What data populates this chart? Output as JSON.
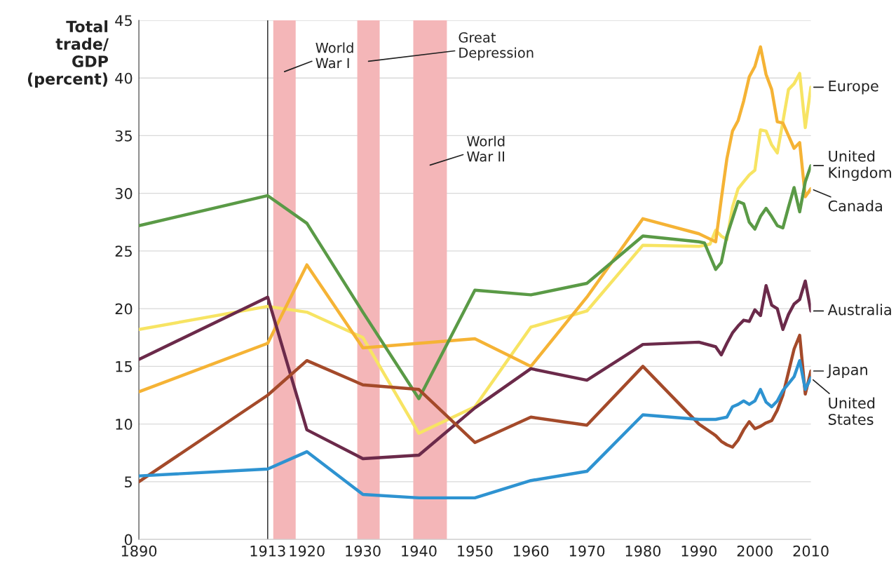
{
  "chart_data": {
    "type": "line",
    "ylabel": "Total\ntrade/\nGDP\n(percent)",
    "xlim": [
      1890,
      2010
    ],
    "xticks": [
      1890,
      1913,
      1920,
      1930,
      1940,
      1950,
      1960,
      1970,
      1980,
      1990,
      2000,
      2010
    ],
    "ylim": [
      0,
      45
    ],
    "yticks": [
      0,
      5,
      10,
      15,
      20,
      25,
      30,
      35,
      40,
      45
    ],
    "grid": "y",
    "series": [
      {
        "name": "Europe",
        "color": "#f7e463",
        "x": [
          1890,
          1913,
          1920,
          1930,
          1940,
          1950,
          1960,
          1970,
          1980,
          1990,
          1992,
          1993,
          1994,
          1995,
          1996,
          1997,
          1998,
          1999,
          2000,
          2001,
          2002,
          2003,
          2004,
          2005,
          2006,
          2007,
          2008,
          2009,
          2010
        ],
        "values": [
          18.2,
          20.2,
          19.7,
          17.5,
          9.2,
          11.5,
          18.4,
          19.8,
          25.5,
          25.4,
          25.6,
          26.8,
          26.3,
          26.0,
          28.8,
          30.4,
          31.0,
          31.6,
          32.0,
          35.5,
          35.4,
          34.2,
          33.5,
          36.2,
          39.0,
          39.5,
          40.4,
          35.7,
          39.2
        ]
      },
      {
        "name": "Canada",
        "color": "#f5b335",
        "x": [
          1890,
          1913,
          1920,
          1930,
          1940,
          1950,
          1960,
          1970,
          1980,
          1990,
          1993,
          1994,
          1995,
          1996,
          1997,
          1998,
          1999,
          2000,
          2001,
          2002,
          2003,
          2004,
          2005,
          2006,
          2007,
          2008,
          2009,
          2010
        ],
        "values": [
          12.8,
          17.0,
          23.8,
          16.6,
          17.0,
          17.4,
          15.0,
          21.0,
          27.8,
          26.5,
          25.8,
          29.5,
          33.0,
          35.4,
          36.3,
          38.0,
          40.1,
          41.0,
          42.7,
          40.3,
          39.0,
          36.2,
          36.1,
          35.0,
          33.9,
          34.4,
          29.7,
          30.4
        ]
      },
      {
        "name": "United\nKingdom",
        "color": "#5a9a46",
        "x": [
          1890,
          1913,
          1920,
          1930,
          1940,
          1950,
          1960,
          1970,
          1980,
          1990,
          1991,
          1993,
          1994,
          1995,
          1996,
          1997,
          1998,
          1999,
          2000,
          2001,
          2002,
          2003,
          2004,
          2005,
          2006,
          2007,
          2008,
          2009,
          2010
        ],
        "values": [
          27.2,
          29.8,
          27.4,
          19.7,
          12.2,
          21.6,
          21.2,
          22.2,
          26.3,
          25.8,
          25.7,
          23.4,
          24.0,
          26.3,
          27.8,
          29.3,
          29.1,
          27.5,
          26.9,
          28.0,
          28.7,
          28.0,
          27.2,
          27.0,
          28.8,
          30.5,
          28.4,
          31.0,
          32.4
        ]
      },
      {
        "name": "Australia",
        "color": "#6b2a4a",
        "x": [
          1890,
          1913,
          1920,
          1930,
          1940,
          1950,
          1960,
          1970,
          1980,
          1990,
          1993,
          1994,
          1995,
          1996,
          1997,
          1998,
          1999,
          2000,
          2001,
          2002,
          2003,
          2004,
          2005,
          2006,
          2007,
          2008,
          2009,
          2010
        ],
        "values": [
          15.6,
          21.0,
          9.5,
          7.0,
          7.3,
          11.4,
          14.8,
          13.8,
          16.9,
          17.1,
          16.7,
          16.0,
          17.0,
          17.9,
          18.5,
          19.0,
          18.9,
          19.9,
          19.4,
          22.0,
          20.3,
          20.0,
          18.2,
          19.5,
          20.4,
          20.8,
          22.4,
          19.8
        ]
      },
      {
        "name": "Japan",
        "color": "#a44a2a",
        "x": [
          1890,
          1913,
          1920,
          1930,
          1940,
          1950,
          1960,
          1970,
          1980,
          1990,
          1993,
          1994,
          1995,
          1996,
          1997,
          1998,
          1999,
          2000,
          2001,
          2002,
          2003,
          2004,
          2005,
          2006,
          2007,
          2008,
          2009,
          2010
        ],
        "values": [
          5.0,
          12.5,
          15.5,
          13.4,
          13.0,
          8.4,
          10.6,
          9.9,
          15.0,
          10.0,
          9.0,
          8.5,
          8.2,
          8.0,
          8.6,
          9.5,
          10.2,
          9.6,
          9.8,
          10.1,
          10.3,
          11.2,
          12.5,
          14.5,
          16.5,
          17.7,
          12.6,
          14.6
        ]
      },
      {
        "name": "United\nStates",
        "color": "#2e93d1",
        "x": [
          1890,
          1913,
          1920,
          1930,
          1940,
          1950,
          1960,
          1970,
          1980,
          1990,
          1993,
          1994,
          1995,
          1996,
          1997,
          1998,
          1999,
          2000,
          2001,
          2002,
          2003,
          2004,
          2005,
          2006,
          2007,
          2008,
          2009,
          2010
        ],
        "values": [
          5.5,
          6.1,
          7.6,
          3.9,
          3.6,
          3.6,
          5.1,
          5.9,
          10.8,
          10.4,
          10.4,
          10.5,
          10.6,
          11.5,
          11.7,
          12.0,
          11.7,
          12.0,
          13.0,
          11.9,
          11.5,
          12.0,
          12.9,
          13.5,
          14.1,
          15.5,
          13.0,
          14.0
        ]
      }
    ],
    "ref_lines": [
      {
        "axis": "x",
        "value": 1913,
        "color": "#333333"
      }
    ],
    "bands": [
      {
        "axis": "x",
        "from": 1914,
        "to": 1918,
        "label": "World\nWar I",
        "color": "#f4b6b8"
      },
      {
        "axis": "x",
        "from": 1929,
        "to": 1933,
        "label": "Great\nDepression",
        "color": "#f4b6b8"
      },
      {
        "axis": "x",
        "from": 1939,
        "to": 1945,
        "label": "World\nWar II",
        "color": "#f4b6b8"
      }
    ]
  }
}
